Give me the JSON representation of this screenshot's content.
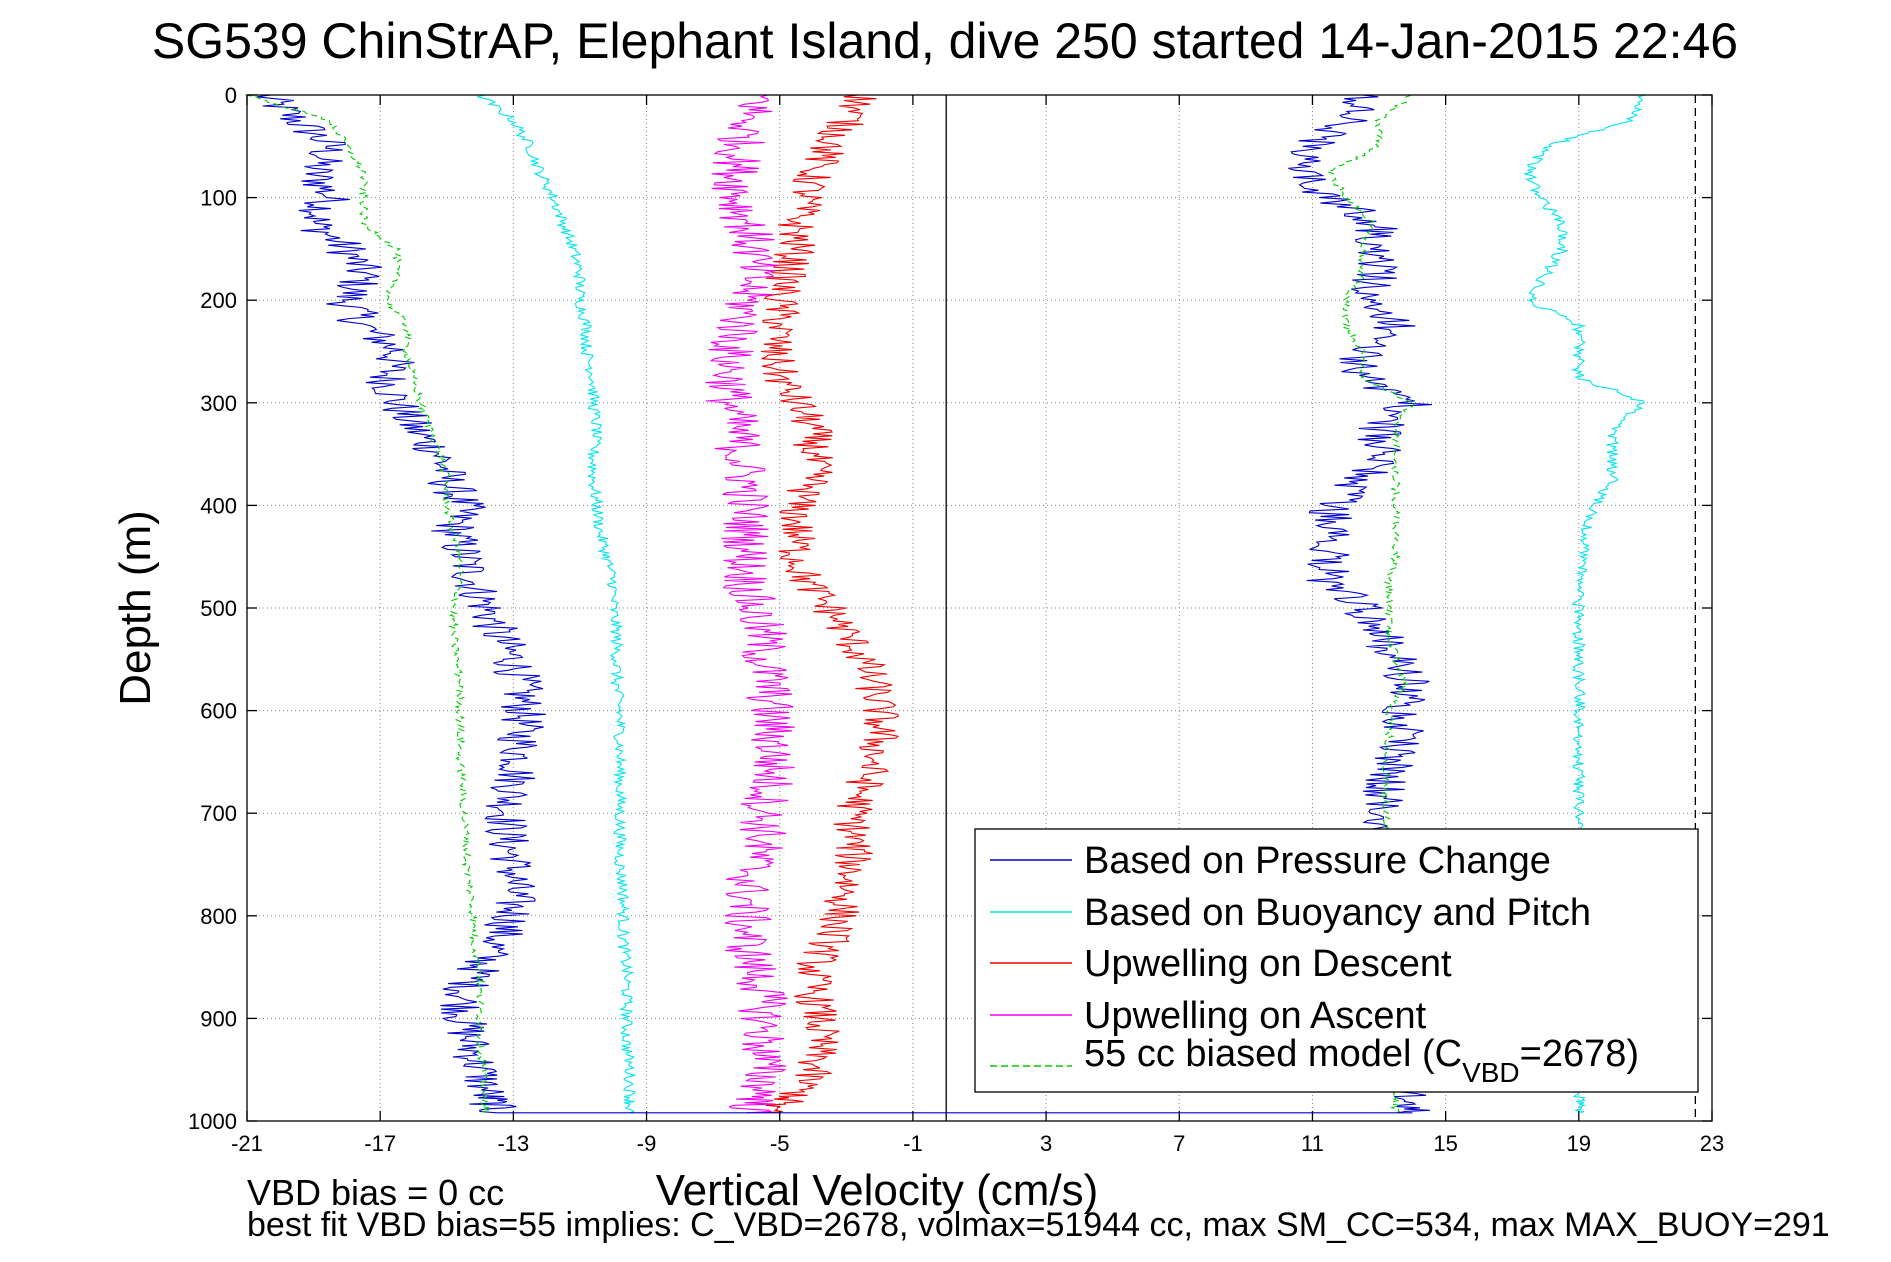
{
  "figure": {
    "title": "SG539 ChinStrAP, Elephant Island, dive 250 started 14-Jan-2015 22:46",
    "footer_line1": "VBD bias = 0 cc",
    "footer_line2": "best fit VBD bias=55 implies: C_VBD=2678, volmax=51944 cc, max SM_CC=534, max MAX_BUOY=291"
  },
  "colors": {
    "pressure": "#0000cc",
    "buoyancy": "#00e5ee",
    "descent": "#ee0000",
    "ascent": "#ee00ee",
    "model": "#00cc00",
    "grid": "#888888"
  },
  "chart_data": {
    "type": "line",
    "title": "SG539 ChinStrAP, Elephant Island, dive 250 started 14-Jan-2015 22:46",
    "xlabel": "Vertical Velocity (cm/s)",
    "ylabel": "Depth (m)",
    "xlim": [
      -21,
      23
    ],
    "ylim": [
      0,
      1000
    ],
    "y_reversed": true,
    "grid": true,
    "xticks": [
      -21,
      -17,
      -13,
      -9,
      -5,
      -1,
      3,
      7,
      11,
      15,
      19,
      23
    ],
    "yticks": [
      0,
      100,
      200,
      300,
      400,
      500,
      600,
      700,
      800,
      900,
      1000
    ],
    "reference_lines": [
      {
        "style": "solid",
        "x": 0
      },
      {
        "style": "dashed",
        "x": 22.5
      }
    ],
    "legend": {
      "position": "bottom-right",
      "entries": [
        {
          "label": "Based on Pressure Change",
          "series": "pressure"
        },
        {
          "label": "Based on Buoyancy and Pitch",
          "series": "buoyancy"
        },
        {
          "label": "Upwelling on Descent",
          "series": "descent"
        },
        {
          "label": "Upwelling on Ascent",
          "series": "ascent"
        },
        {
          "label_pre": "55 cc biased model (C",
          "label_sub": "VBD",
          "label_post": "=2678)",
          "series": "model"
        }
      ]
    },
    "series": [
      {
        "id": "pressure",
        "style": "solid",
        "points": [
          {
            "segment": "descent",
            "depth": [
              0,
              25,
              50,
              75,
              100,
              125,
              150,
              175,
              200,
              225,
              250,
              275,
              300,
              325,
              350,
              375,
              400,
              425,
              450,
              475,
              500,
              525,
              550,
              575,
              600,
              625,
              650,
              675,
              700,
              725,
              750,
              775,
              800,
              825,
              850,
              875,
              900,
              925,
              950,
              975,
              992
            ],
            "velocity": [
              -20.5,
              -19.5,
              -18.5,
              -19.0,
              -18.5,
              -19.0,
              -18.0,
              -17.5,
              -18.0,
              -17.5,
              -16.5,
              -16.8,
              -16.5,
              -16.0,
              -15.2,
              -15.0,
              -14.5,
              -14.8,
              -14.5,
              -14.2,
              -13.8,
              -13.5,
              -13.0,
              -12.8,
              -12.7,
              -12.8,
              -12.8,
              -13.0,
              -13.2,
              -13.2,
              -13.0,
              -13.0,
              -13.0,
              -13.5,
              -14.0,
              -14.5,
              -14.5,
              -14.3,
              -14.0,
              -13.8,
              -13.5
            ]
          },
          {
            "segment": "ascent",
            "depth": [
              992,
              975,
              950,
              925,
              900,
              875,
              850,
              825,
              800,
              775,
              750,
              725,
              700,
              675,
              650,
              625,
              600,
              575,
              550,
              525,
              500,
              475,
              450,
              425,
              400,
              375,
              350,
              325,
              300,
              275,
              250,
              225,
              200,
              175,
              150,
              125,
              100,
              75,
              50,
              25,
              0
            ],
            "velocity": [
              14.0,
              13.8,
              13.8,
              13.6,
              13.6,
              13.5,
              13.5,
              13.4,
              13.4,
              13.3,
              13.2,
              13.0,
              13.0,
              13.2,
              13.5,
              13.8,
              13.8,
              14.0,
              13.5,
              13.0,
              12.5,
              11.5,
              11.5,
              11.8,
              11.5,
              12.5,
              13.0,
              13.0,
              14.0,
              12.5,
              12.5,
              13.5,
              12.5,
              13.0,
              12.8,
              13.0,
              11.5,
              10.5,
              11.0,
              12.0,
              12.5
            ]
          }
        ]
      },
      {
        "id": "buoyancy",
        "style": "solid",
        "points": [
          {
            "segment": "descent",
            "depth": [
              0,
              25,
              50,
              75,
              100,
              125,
              150,
              175,
              200,
              225,
              250,
              275,
              300,
              325,
              350,
              375,
              400,
              425,
              450,
              475,
              500,
              525,
              550,
              575,
              600,
              625,
              650,
              675,
              700,
              725,
              750,
              775,
              800,
              825,
              850,
              875,
              900,
              925,
              950,
              975,
              992
            ],
            "velocity": [
              -14.0,
              -13.0,
              -12.5,
              -12.2,
              -11.8,
              -11.5,
              -11.2,
              -11.0,
              -11.0,
              -10.8,
              -10.8,
              -10.6,
              -10.6,
              -10.5,
              -10.6,
              -10.6,
              -10.5,
              -10.4,
              -10.2,
              -10.0,
              -10.0,
              -9.9,
              -9.9,
              -9.9,
              -9.8,
              -9.8,
              -9.8,
              -9.8,
              -9.8,
              -9.8,
              -9.8,
              -9.7,
              -9.7,
              -9.7,
              -9.6,
              -9.6,
              -9.6,
              -9.6,
              -9.5,
              -9.5,
              -9.5
            ]
          },
          {
            "segment": "ascent",
            "depth": [
              992,
              975,
              950,
              925,
              900,
              875,
              850,
              825,
              800,
              775,
              750,
              725,
              700,
              675,
              650,
              625,
              600,
              575,
              550,
              525,
              500,
              475,
              450,
              425,
              400,
              375,
              350,
              325,
              300,
              275,
              250,
              225,
              200,
              175,
              150,
              125,
              100,
              75,
              50,
              25,
              0
            ],
            "velocity": [
              19.0,
              19.0,
              19.0,
              19.0,
              19.0,
              19.0,
              19.0,
              19.0,
              19.0,
              19.0,
              19.0,
              19.0,
              19.0,
              19.0,
              19.0,
              19.0,
              19.0,
              19.0,
              19.0,
              19.0,
              19.0,
              19.0,
              19.2,
              19.2,
              19.5,
              20.0,
              20.0,
              20.0,
              21.0,
              19.0,
              19.0,
              19.0,
              17.5,
              18.0,
              18.5,
              18.5,
              17.8,
              17.5,
              18.0,
              20.5,
              21.0
            ]
          }
        ]
      },
      {
        "id": "descent",
        "style": "solid",
        "points": [
          {
            "segment": "profile",
            "depth": [
              0,
              25,
              50,
              75,
              100,
              125,
              150,
              175,
              200,
              225,
              250,
              275,
              300,
              325,
              350,
              375,
              400,
              425,
              450,
              475,
              500,
              525,
              550,
              575,
              600,
              625,
              650,
              675,
              700,
              725,
              750,
              775,
              800,
              825,
              850,
              875,
              900,
              925,
              950,
              975,
              992
            ],
            "velocity": [
              -2.5,
              -3.0,
              -3.5,
              -4.0,
              -4.2,
              -4.5,
              -4.5,
              -4.8,
              -5.0,
              -5.0,
              -5.2,
              -5.0,
              -4.5,
              -4.0,
              -4.0,
              -4.0,
              -4.5,
              -4.5,
              -4.5,
              -4.2,
              -3.5,
              -3.0,
              -2.5,
              -2.2,
              -2.0,
              -2.0,
              -2.2,
              -2.5,
              -2.8,
              -2.8,
              -2.8,
              -3.0,
              -3.2,
              -3.5,
              -4.0,
              -4.0,
              -3.8,
              -3.8,
              -4.0,
              -4.5,
              -5.5
            ]
          }
        ]
      },
      {
        "id": "ascent",
        "style": "solid",
        "points": [
          {
            "segment": "profile",
            "depth": [
              0,
              25,
              50,
              75,
              100,
              125,
              150,
              175,
              200,
              225,
              250,
              275,
              300,
              325,
              350,
              375,
              400,
              425,
              450,
              475,
              500,
              525,
              550,
              575,
              600,
              625,
              650,
              675,
              700,
              725,
              750,
              775,
              800,
              825,
              850,
              875,
              900,
              925,
              950,
              975,
              992
            ],
            "velocity": [
              -5.5,
              -6.0,
              -6.2,
              -6.3,
              -6.3,
              -6.0,
              -5.8,
              -5.8,
              -6.0,
              -6.2,
              -6.5,
              -6.5,
              -6.5,
              -6.3,
              -6.2,
              -6.0,
              -6.0,
              -6.0,
              -6.0,
              -6.0,
              -5.8,
              -5.5,
              -5.5,
              -5.3,
              -5.3,
              -5.2,
              -5.2,
              -5.3,
              -5.5,
              -5.5,
              -5.8,
              -6.0,
              -6.0,
              -6.0,
              -5.8,
              -5.5,
              -5.5,
              -5.5,
              -5.5,
              -5.5,
              -6.0
            ]
          }
        ]
      },
      {
        "id": "model",
        "style": "dashed",
        "points": [
          {
            "segment": "descent",
            "depth": [
              0,
              25,
              50,
              75,
              100,
              125,
              150,
              175,
              200,
              225,
              250,
              275,
              300,
              325,
              350,
              375,
              400,
              425,
              450,
              475,
              500,
              525,
              550,
              575,
              600,
              625,
              650,
              675,
              700,
              725,
              750,
              775,
              800,
              825,
              850,
              875,
              900,
              925,
              950,
              975,
              992
            ],
            "velocity": [
              -21.0,
              -18.5,
              -18.0,
              -17.5,
              -17.5,
              -17.5,
              -16.5,
              -16.5,
              -16.8,
              -16.2,
              -16.2,
              -16.0,
              -15.8,
              -15.5,
              -15.2,
              -15.0,
              -15.0,
              -14.8,
              -14.6,
              -14.6,
              -14.8,
              -14.8,
              -14.7,
              -14.6,
              -14.6,
              -14.6,
              -14.6,
              -14.5,
              -14.5,
              -14.4,
              -14.4,
              -14.3,
              -14.2,
              -14.2,
              -14.0,
              -14.0,
              -14.0,
              -14.0,
              -13.9,
              -13.9,
              -13.8
            ]
          },
          {
            "segment": "ascent",
            "depth": [
              992,
              975,
              950,
              925,
              900,
              875,
              850,
              825,
              800,
              775,
              750,
              725,
              700,
              675,
              650,
              625,
              600,
              575,
              550,
              525,
              500,
              475,
              450,
              425,
              400,
              375,
              350,
              325,
              300,
              275,
              250,
              225,
              200,
              175,
              150,
              125,
              100,
              75,
              50,
              25,
              0
            ],
            "velocity": [
              13.5,
              13.5,
              13.5,
              13.4,
              13.4,
              13.4,
              13.4,
              13.3,
              13.3,
              13.3,
              13.3,
              13.2,
              13.2,
              13.2,
              13.2,
              13.3,
              13.3,
              13.8,
              13.5,
              13.3,
              13.3,
              13.3,
              13.5,
              13.5,
              13.5,
              13.5,
              13.5,
              13.5,
              14.0,
              12.5,
              12.5,
              12.0,
              12.0,
              12.5,
              12.5,
              12.8,
              12.0,
              11.5,
              13.0,
              13.0,
              14.0
            ]
          }
        ]
      }
    ]
  }
}
